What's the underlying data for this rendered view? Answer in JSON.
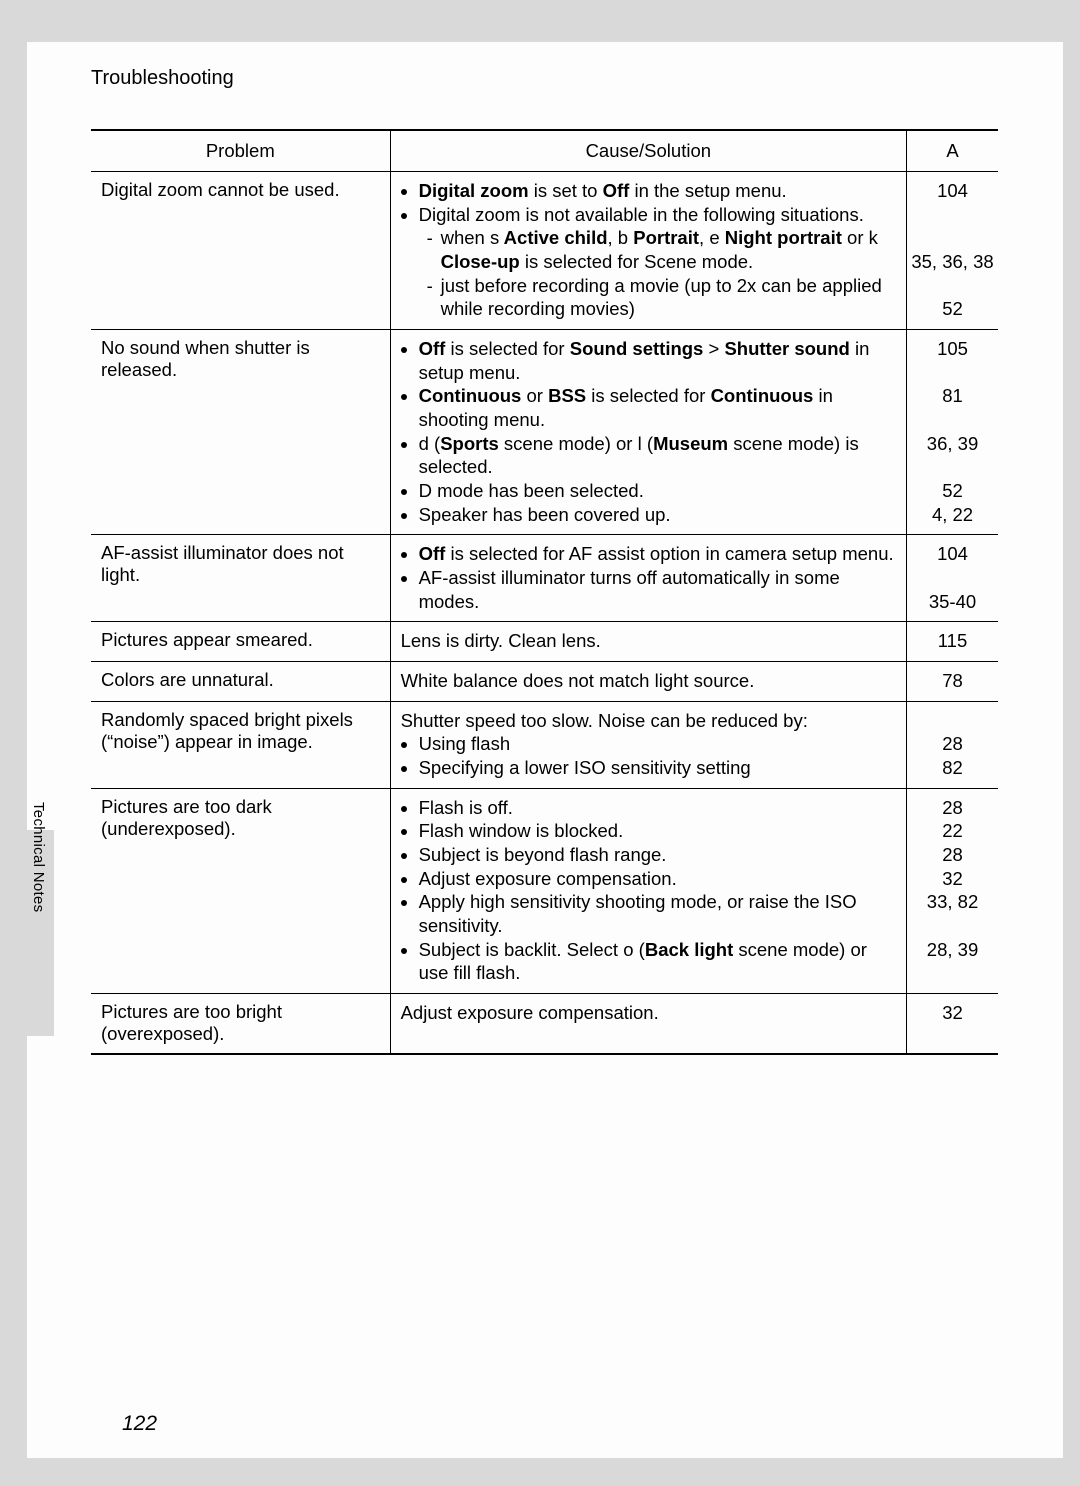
{
  "section_title": "Troubleshooting",
  "sidebar_label": "Technical Notes",
  "page_number": "122",
  "icon_chars": {
    "active_child": "s",
    "portrait": "b",
    "night_portrait": "e",
    "closeup": "k",
    "sports": "d",
    "museum": "l",
    "movie": "D",
    "backlight": "o"
  },
  "columns": {
    "problem": "Problem",
    "cause": "Cause/Solution",
    "page": "A"
  },
  "rows": [
    {
      "problem": "Digital zoom cannot be used.",
      "pages": [
        "104",
        "",
        "35, 36, 38",
        "52"
      ]
    },
    {
      "problem": "No sound when shutter is released.",
      "pages": [
        "105",
        "81",
        "36, 39",
        "52",
        "4, 22"
      ]
    },
    {
      "problem": "AF-assist illuminator does not light.",
      "pages": [
        "104",
        "35-40"
      ]
    },
    {
      "problem": "Pictures appear smeared.",
      "cause_plain": "Lens is dirty. Clean lens.",
      "pages": [
        "115"
      ]
    },
    {
      "problem": "Colors are unnatural.",
      "cause_plain": "White balance does not match light source.",
      "pages": [
        "78"
      ]
    },
    {
      "problem": "Randomly spaced bright pixels (“noise”) appear in image.",
      "cause_lead": "Shutter speed too slow. Noise can be reduced by:",
      "cause_items": [
        "Using flash",
        "Specifying a lower ISO sensitivity setting"
      ],
      "pages": [
        "",
        "28",
        "82"
      ]
    },
    {
      "problem": "Pictures are too dark (underexposed).",
      "cause_items": [
        "Flash is off.",
        "Flash window is blocked.",
        "Subject is beyond flash range.",
        "Adjust exposure compensation.",
        "Apply high sensitivity shooting mode, or raise the ISO sensitivity."
      ],
      "pages": [
        "28",
        "22",
        "28",
        "32",
        "33, 82",
        "28, 39"
      ]
    },
    {
      "problem": "Pictures are too bright (overexposed).",
      "cause_plain": "Adjust exposure compensation.",
      "pages": [
        "32"
      ]
    }
  ],
  "r0": {
    "i1a": "Digital zoom",
    "i1b": " is set to ",
    "i1c": "Off",
    "i1d": " in the setup menu.",
    "i2": "Digital zoom is not available in the following situations.",
    "d1a": "when ",
    "d1b": " Active child",
    "d1c": ", ",
    "d1d": " Portrait",
    "d1e": ", ",
    "d1f": "Night portrait",
    "d1g": " or ",
    "d1h": " Close-up",
    "d1i": " is selected for Scene mode.",
    "d2": "just before recording a movie (up to 2x can be applied while recording movies)"
  },
  "r1": {
    "i1a": "Off",
    "i1b": " is selected for ",
    "i1c": "Sound settings",
    "i1d": " > ",
    "i1e": "Shutter sound",
    "i1f": " in setup menu.",
    "i2a": "Continuous",
    "i2b": " or ",
    "i2c": "BSS",
    "i2d": " is selected for ",
    "i2e": "Continuous",
    "i2f": " in shooting menu.",
    "i3a": " (",
    "i3b": "Sports",
    "i3c": " scene mode) or ",
    "i3d": " (",
    "i3e": "Museum",
    "i3f": " scene mode) is selected.",
    "i4a": " mode has been selected.",
    "i5": "Speaker has been covered up."
  },
  "r2": {
    "i1a": "Off",
    "i1b": " is selected for AF assist option in camera setup menu.",
    "i2": "AF-assist illuminator turns off automatically in some modes."
  },
  "r6_last_a": "Subject is backlit. Select ",
  "r6_last_b": " (",
  "r6_last_c": "Back light",
  "r6_last_d": " scene mode) or use fill flash."
}
